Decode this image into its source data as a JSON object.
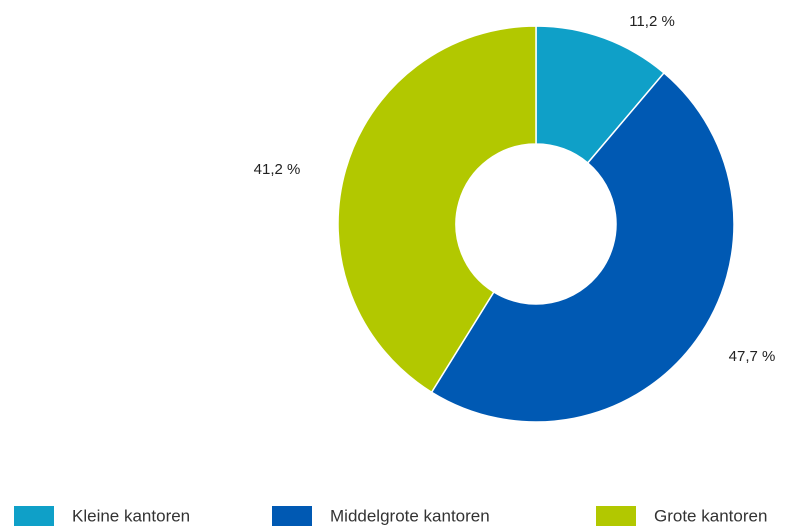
{
  "chart_data": {
    "type": "donut",
    "categories": [
      "Kleine kantoren",
      "Middelgrote kantoren",
      "Grote kantoren"
    ],
    "values": [
      11.2,
      47.7,
      41.2
    ],
    "value_labels": [
      "11,2 %",
      "47,7 %",
      "41,2 %"
    ],
    "colors": [
      "#0fa0c8",
      "#0059b3",
      "#b2c800"
    ]
  }
}
